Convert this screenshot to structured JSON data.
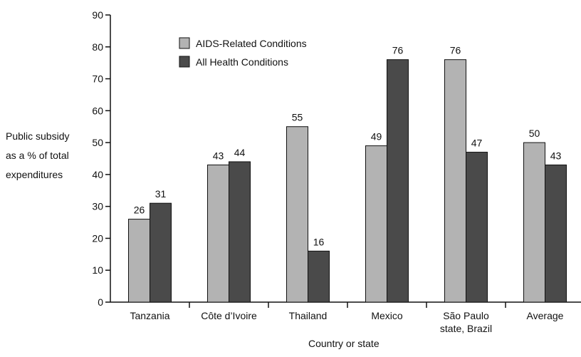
{
  "chart_data": {
    "type": "bar",
    "categories": [
      [
        "Tanzania"
      ],
      [
        "Côte d’Ivoire"
      ],
      [
        "Thailand"
      ],
      [
        "Mexico"
      ],
      [
        "São Paulo",
        "state, Brazil"
      ],
      [
        "Average"
      ]
    ],
    "series": [
      {
        "name": "AIDS-Related Conditions",
        "values": [
          26,
          43,
          55,
          49,
          76,
          50
        ],
        "color": "#b3b3b3"
      },
      {
        "name": "All Health Conditions",
        "values": [
          31,
          44,
          16,
          76,
          47,
          43
        ],
        "color": "#4a4a4a"
      }
    ],
    "data_labels": [
      [
        "26",
        "43",
        "55",
        "49",
        "76",
        "50"
      ],
      [
        "31",
        "44",
        "16",
        "76",
        "47",
        "43"
      ]
    ],
    "ylabel_lines": [
      "Public subsidy",
      "as a % of total",
      "expenditures"
    ],
    "xlabel": "Country or state",
    "ylim": [
      0,
      90
    ],
    "yticks": [
      0,
      10,
      20,
      30,
      40,
      50,
      60,
      70,
      80,
      90
    ],
    "grid": false,
    "legend_position": "top-left"
  }
}
